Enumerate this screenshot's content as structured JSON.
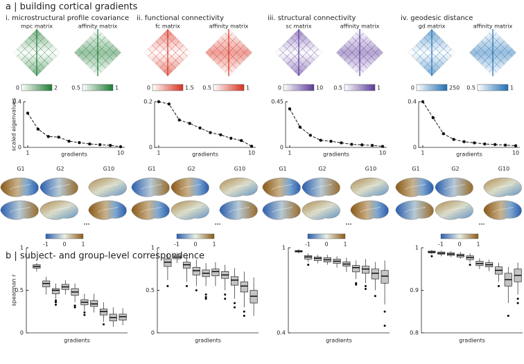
{
  "panel_a": {
    "title": "a | building cortical gradients",
    "columns": [
      {
        "title": "i. microstructural profile covariance",
        "colormap": [
          "#ffffff",
          "#1e7b34"
        ],
        "matrices": [
          {
            "label": "mpc matrix",
            "ticks": [
              0,
              2
            ]
          },
          {
            "label": "affinity matrix",
            "ticks": [
              0.5,
              1
            ]
          }
        ],
        "brain_labels": [
          "G1",
          "G2",
          "G10"
        ],
        "ellipsis": "...",
        "brain_colorbar_ticks": [
          -1,
          0,
          1
        ]
      },
      {
        "title": "ii. functional connectivity",
        "colormap": [
          "#ffffff",
          "#d7301f"
        ],
        "matrices": [
          {
            "label": "fc matrix",
            "ticks": [
              0,
              1.5
            ]
          },
          {
            "label": "affinity matrix",
            "ticks": [
              0.5,
              1
            ]
          }
        ],
        "brain_labels": [
          "G1",
          "G2",
          "G10"
        ],
        "ellipsis": "...",
        "brain_colorbar_ticks": [
          -1,
          0,
          1
        ]
      },
      {
        "title": "iii. structural connectivity",
        "colormap": [
          "#ffffff",
          "#5b3a99"
        ],
        "matrices": [
          {
            "label": "sc matrix",
            "ticks": [
              0,
              10
            ]
          },
          {
            "label": "affinity matrix",
            "ticks": [
              0.5,
              1
            ]
          }
        ],
        "brain_labels": [
          "G1",
          "G2",
          "G10"
        ],
        "ellipsis": "...",
        "brain_colorbar_ticks": [
          -1,
          0,
          1
        ]
      },
      {
        "title": "iv. geodesic distance",
        "colormap": [
          "#ffffff",
          "#1f6fb4"
        ],
        "matrices": [
          {
            "label": "gd matrix",
            "ticks": [
              0,
              250
            ]
          },
          {
            "label": "affinity matrix",
            "ticks": [
              0.5,
              1
            ]
          }
        ],
        "brain_labels": [
          "G1",
          "G2",
          "G10"
        ],
        "ellipsis": "...",
        "brain_colorbar_ticks": [
          -1,
          0,
          1
        ]
      }
    ],
    "brain_colormap": [
      "#2b5fae",
      "#e9efe6",
      "#8a5a17"
    ]
  },
  "panel_b": {
    "title": "b | subject- and group-level correspondence"
  },
  "chart_data": [
    {
      "type": "line",
      "x": [
        1,
        2,
        3,
        4,
        5,
        6,
        7,
        8,
        9,
        10
      ],
      "values": [
        0.3,
        0.16,
        0.095,
        0.09,
        0.054,
        0.042,
        0.03,
        0.024,
        0.018,
        0.006
      ],
      "xlim": [
        0.6,
        10.4
      ],
      "xticks": [
        1,
        10
      ],
      "ylim": [
        0,
        0.4
      ],
      "yticks": [
        0,
        0.4
      ],
      "xlabel": "gradients",
      "ylabel": "scaled eigenvalues",
      "color": "#111111"
    },
    {
      "type": "line",
      "x": [
        1,
        2,
        3,
        4,
        5,
        6,
        7,
        8,
        9,
        10
      ],
      "values": [
        0.2,
        0.19,
        0.12,
        0.105,
        0.085,
        0.065,
        0.055,
        0.04,
        0.03,
        0.005
      ],
      "xlim": [
        0.6,
        10.4
      ],
      "xticks": [
        1,
        10
      ],
      "ylim": [
        0,
        0.2
      ],
      "yticks": [
        0,
        0.2
      ],
      "xlabel": "gradients",
      "color": "#111111"
    },
    {
      "type": "line",
      "x": [
        1,
        2,
        3,
        4,
        5,
        6,
        7,
        8,
        9,
        10
      ],
      "values": [
        0.38,
        0.2,
        0.12,
        0.07,
        0.06,
        0.045,
        0.03,
        0.025,
        0.02,
        0.01
      ],
      "xlim": [
        0.6,
        10.4
      ],
      "xticks": [
        1,
        10
      ],
      "ylim": [
        0,
        0.45
      ],
      "yticks": [
        0,
        0.45
      ],
      "xlabel": "gradients",
      "color": "#111111"
    },
    {
      "type": "line",
      "x": [
        1,
        2,
        3,
        4,
        5,
        6,
        7,
        8,
        9,
        10
      ],
      "values": [
        0.4,
        0.26,
        0.12,
        0.07,
        0.05,
        0.04,
        0.03,
        0.025,
        0.02,
        0.015
      ],
      "xlim": [
        0.6,
        10.4
      ],
      "xticks": [
        1,
        10
      ],
      "ylim": [
        0,
        0.4
      ],
      "yticks": [
        0,
        0.4
      ],
      "xlabel": "gradients",
      "color": "#111111"
    },
    {
      "type": "box",
      "ylim": [
        0,
        1
      ],
      "yticks": [
        0,
        0.5,
        1
      ],
      "xlabel": "gradients",
      "ylabel": "spearman r",
      "color": "#c4c4c4",
      "boxes": [
        {
          "low": 0.72,
          "q1": 0.76,
          "median": 0.78,
          "q3": 0.8,
          "high": 0.82,
          "outliers": []
        },
        {
          "low": 0.45,
          "q1": 0.54,
          "median": 0.58,
          "q3": 0.61,
          "high": 0.66,
          "outliers": []
        },
        {
          "low": 0.4,
          "q1": 0.46,
          "median": 0.5,
          "q3": 0.52,
          "high": 0.58,
          "outliers": [
            0.38,
            0.36,
            0.33
          ]
        },
        {
          "low": 0.45,
          "q1": 0.51,
          "median": 0.54,
          "q3": 0.57,
          "high": 0.62,
          "outliers": []
        },
        {
          "low": 0.36,
          "q1": 0.44,
          "median": 0.48,
          "q3": 0.52,
          "high": 0.58,
          "outliers": [
            0.32,
            0.3
          ]
        },
        {
          "low": 0.26,
          "q1": 0.33,
          "median": 0.36,
          "q3": 0.39,
          "high": 0.46,
          "outliers": [
            0.24,
            0.21
          ]
        },
        {
          "low": 0.24,
          "q1": 0.31,
          "median": 0.34,
          "q3": 0.38,
          "high": 0.46,
          "outliers": []
        },
        {
          "low": 0.13,
          "q1": 0.21,
          "median": 0.25,
          "q3": 0.28,
          "high": 0.36,
          "outliers": [
            0.1
          ]
        },
        {
          "low": 0.07,
          "q1": 0.14,
          "median": 0.18,
          "q3": 0.22,
          "high": 0.3,
          "outliers": []
        },
        {
          "low": 0.09,
          "q1": 0.15,
          "median": 0.19,
          "q3": 0.22,
          "high": 0.29,
          "outliers": []
        }
      ]
    },
    {
      "type": "box",
      "ylim": [
        0,
        1
      ],
      "yticks": [
        0,
        0.5,
        1
      ],
      "xlabel": "gradients",
      "color": "#c4c4c4",
      "boxes": [
        {
          "low": 0.62,
          "q1": 0.78,
          "median": 0.83,
          "q3": 0.87,
          "high": 0.93,
          "outliers": [
            0.55
          ]
        },
        {
          "low": 0.82,
          "q1": 0.87,
          "median": 0.89,
          "q3": 0.91,
          "high": 0.94,
          "outliers": []
        },
        {
          "low": 0.6,
          "q1": 0.76,
          "median": 0.8,
          "q3": 0.83,
          "high": 0.9,
          "outliers": [
            0.55
          ]
        },
        {
          "low": 0.55,
          "q1": 0.68,
          "median": 0.73,
          "q3": 0.77,
          "high": 0.86,
          "outliers": [
            0.5
          ]
        },
        {
          "low": 0.55,
          "q1": 0.66,
          "median": 0.7,
          "q3": 0.74,
          "high": 0.82,
          "outliers": [
            0.45,
            0.42,
            0.4
          ]
        },
        {
          "low": 0.55,
          "q1": 0.67,
          "median": 0.72,
          "q3": 0.75,
          "high": 0.83,
          "outliers": []
        },
        {
          "low": 0.5,
          "q1": 0.64,
          "median": 0.68,
          "q3": 0.72,
          "high": 0.8,
          "outliers": [
            0.45,
            0.4
          ]
        },
        {
          "low": 0.4,
          "q1": 0.56,
          "median": 0.62,
          "q3": 0.66,
          "high": 0.76,
          "outliers": [
            0.35,
            0.3
          ]
        },
        {
          "low": 0.3,
          "q1": 0.48,
          "median": 0.55,
          "q3": 0.6,
          "high": 0.72,
          "outliers": [
            0.25,
            0.2
          ]
        },
        {
          "low": 0.2,
          "q1": 0.35,
          "median": 0.43,
          "q3": 0.5,
          "high": 0.65,
          "outliers": []
        }
      ]
    },
    {
      "type": "box",
      "ylim": [
        0.4,
        1
      ],
      "yticks": [
        0.4,
        1
      ],
      "xlabel": "gradients",
      "color": "#c4c4c4",
      "boxes": [
        {
          "low": 0.96,
          "q1": 0.97,
          "median": 0.975,
          "q3": 0.98,
          "high": 0.99,
          "outliers": []
        },
        {
          "low": 0.9,
          "q1": 0.92,
          "median": 0.935,
          "q3": 0.945,
          "high": 0.96,
          "outliers": [
            0.88
          ]
        },
        {
          "low": 0.89,
          "q1": 0.91,
          "median": 0.925,
          "q3": 0.935,
          "high": 0.95,
          "outliers": []
        },
        {
          "low": 0.88,
          "q1": 0.9,
          "median": 0.915,
          "q3": 0.93,
          "high": 0.95,
          "outliers": []
        },
        {
          "low": 0.86,
          "q1": 0.89,
          "median": 0.905,
          "q3": 0.92,
          "high": 0.94,
          "outliers": []
        },
        {
          "low": 0.83,
          "q1": 0.87,
          "median": 0.885,
          "q3": 0.9,
          "high": 0.93,
          "outliers": []
        },
        {
          "low": 0.78,
          "q1": 0.83,
          "median": 0.86,
          "q3": 0.875,
          "high": 0.91,
          "outliers": [
            0.75,
            0.74
          ]
        },
        {
          "low": 0.75,
          "q1": 0.82,
          "median": 0.85,
          "q3": 0.87,
          "high": 0.92,
          "outliers": [
            0.73,
            0.71
          ]
        },
        {
          "low": 0.7,
          "q1": 0.78,
          "median": 0.82,
          "q3": 0.85,
          "high": 0.9,
          "outliers": [
            0.66
          ]
        },
        {
          "low": 0.6,
          "q1": 0.75,
          "median": 0.8,
          "q3": 0.84,
          "high": 0.91,
          "outliers": [
            0.55,
            0.45
          ]
        }
      ]
    },
    {
      "type": "box",
      "ylim": [
        0.8,
        1
      ],
      "yticks": [
        0.8,
        0.9,
        1
      ],
      "xlabel": "gradients",
      "color": "#c4c4c4",
      "boxes": [
        {
          "low": 0.985,
          "q1": 0.988,
          "median": 0.99,
          "q3": 0.992,
          "high": 0.995,
          "outliers": [
            0.98
          ]
        },
        {
          "low": 0.98,
          "q1": 0.985,
          "median": 0.987,
          "q3": 0.99,
          "high": 0.993,
          "outliers": []
        },
        {
          "low": 0.978,
          "q1": 0.982,
          "median": 0.985,
          "q3": 0.988,
          "high": 0.992,
          "outliers": []
        },
        {
          "low": 0.974,
          "q1": 0.978,
          "median": 0.982,
          "q3": 0.985,
          "high": 0.99,
          "outliers": []
        },
        {
          "low": 0.965,
          "q1": 0.972,
          "median": 0.977,
          "q3": 0.981,
          "high": 0.987,
          "outliers": [
            0.96
          ]
        },
        {
          "low": 0.95,
          "q1": 0.958,
          "median": 0.963,
          "q3": 0.968,
          "high": 0.975,
          "outliers": []
        },
        {
          "low": 0.945,
          "q1": 0.955,
          "median": 0.96,
          "q3": 0.965,
          "high": 0.972,
          "outliers": []
        },
        {
          "low": 0.92,
          "q1": 0.938,
          "median": 0.947,
          "q3": 0.955,
          "high": 0.965,
          "outliers": [
            0.91
          ]
        },
        {
          "low": 0.87,
          "q1": 0.91,
          "median": 0.925,
          "q3": 0.94,
          "high": 0.955,
          "outliers": [
            0.84
          ]
        },
        {
          "low": 0.89,
          "q1": 0.92,
          "median": 0.935,
          "q3": 0.95,
          "high": 0.965,
          "outliers": [
            0.88,
            0.87
          ]
        }
      ]
    }
  ]
}
